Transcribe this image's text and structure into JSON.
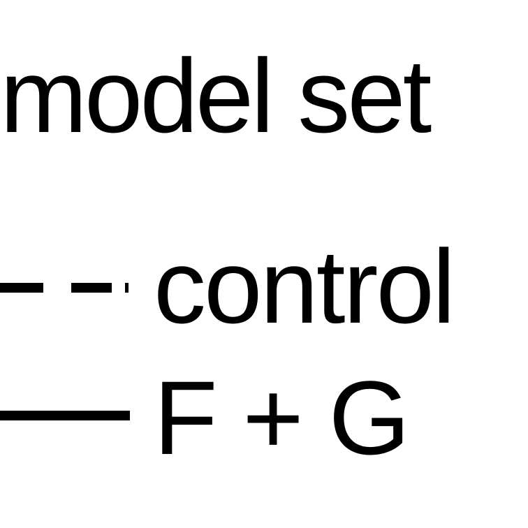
{
  "chart_data": {
    "type": "line",
    "title": "",
    "legend": {
      "title": "model set",
      "placement": "full-frame",
      "entries": [
        {
          "label": "control",
          "line_style": "dashed",
          "color": "#000000"
        },
        {
          "label": "F + G",
          "line_style": "solid",
          "color": "#000000"
        }
      ]
    }
  }
}
